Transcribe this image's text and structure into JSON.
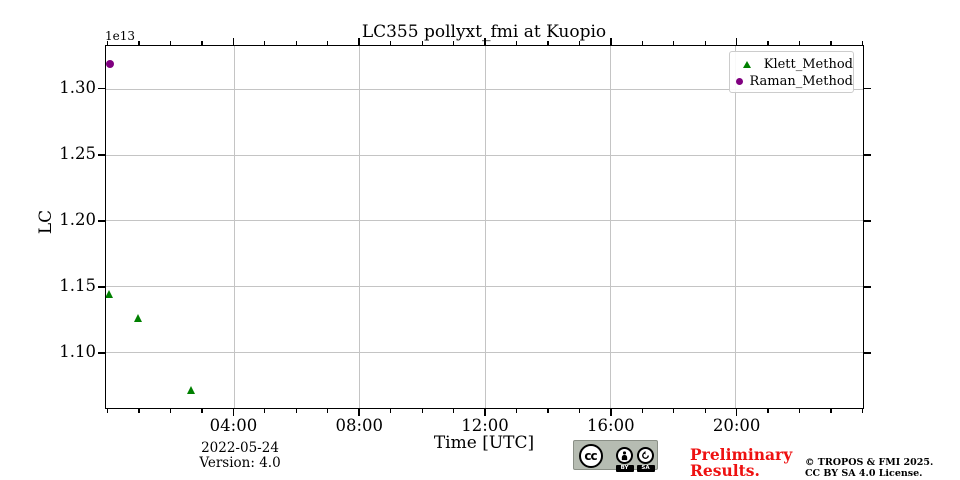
{
  "figure": {
    "title": "LC355 pollyxt_fmi at Kuopio",
    "offset_text": "1e13",
    "xlabel": "Time [UTC]",
    "ylabel": "LC",
    "date_annotation": "2022-05-24",
    "version_annotation": "Version: 4.0"
  },
  "legend": {
    "items": [
      {
        "label": "Klett_Method",
        "marker": "triangle",
        "color": "#008000"
      },
      {
        "label": "Raman_Method",
        "marker": "circle",
        "color": "#800080"
      }
    ]
  },
  "footer": {
    "preliminary_line1": "Preliminary",
    "preliminary_line2": "Results.",
    "preliminary_color": "#ee1111",
    "copyright_line1": "© TROPOS & FMI 2025.",
    "copyright_line2": "CC BY SA 4.0 License.",
    "cc_badge": {
      "cc_label": "cc",
      "by_label": "BY",
      "sa_label": "SA"
    }
  },
  "chart_data": {
    "type": "scatter",
    "title": "LC355 pollyxt_fmi at Kuopio",
    "xlabel": "Time [UTC]",
    "ylabel": "LC",
    "y_scale_factor": "1e13",
    "grid": {
      "show": true,
      "color": "#c4c4c4"
    },
    "legend_position": "upper right",
    "x_axis": {
      "unit": "hours UTC on 2022-05-24",
      "min": -0.1,
      "max": 24.05,
      "major_ticks": [
        {
          "hours": 4,
          "label": "04:00"
        },
        {
          "hours": 8,
          "label": "08:00"
        },
        {
          "hours": 12,
          "label": "12:00"
        },
        {
          "hours": 16,
          "label": "16:00"
        },
        {
          "hours": 20,
          "label": "20:00"
        }
      ],
      "minor_tick_interval_hours": 1
    },
    "y_axis": {
      "min": 1.058,
      "max": 1.333,
      "ticks": [
        {
          "value": 1.1,
          "label": "1.10"
        },
        {
          "value": 1.15,
          "label": "1.15"
        },
        {
          "value": 1.2,
          "label": "1.20"
        },
        {
          "value": 1.25,
          "label": "1.25"
        },
        {
          "value": 1.3,
          "label": "1.30"
        }
      ]
    },
    "series": [
      {
        "name": "Klett_Method",
        "marker": "triangle",
        "color": "#008000",
        "points": [
          {
            "time_hours": 0.0,
            "value_1e13": 1.144
          },
          {
            "time_hours": 0.95,
            "value_1e13": 1.126
          },
          {
            "time_hours": 2.63,
            "value_1e13": 1.071
          }
        ]
      },
      {
        "name": "Raman_Method",
        "marker": "circle",
        "color": "#800080",
        "points": [
          {
            "time_hours": 0.05,
            "value_1e13": 1.319
          }
        ]
      }
    ]
  }
}
